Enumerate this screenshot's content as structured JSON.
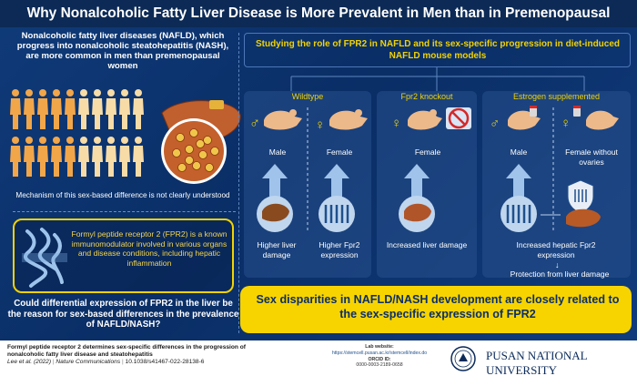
{
  "title": "Why Nonalcoholic Fatty Liver Disease is More Prevalent in Men than in Premenopausal Women",
  "left": {
    "intro": "Nonalcoholic fatty liver diseases (NAFLD), which progress into nonalcoholic steatohepatitis (NASH), are more common in men than premenopausal women",
    "mechanism": "Mechanism of this sex-based difference is not clearly understood",
    "fpr2": "Formyl peptide receptor 2 (FPR2) is a known immunomodulator involved in various organs and disease conditions, including hepatic inflammation",
    "question": "Could differential expression of FPR2 in the liver be the reason for sex-based differences in the prevalence of NAFLD/NASH?"
  },
  "study": "Studying the role of FPR2 in NAFLD and its sex-specific progression in diet-induced NAFLD mouse models",
  "panels": {
    "wildtype": {
      "title": "Wildtype",
      "male": "Male",
      "female": "Female",
      "male_result": "Higher liver damage",
      "female_result": "Higher Fpr2 expression"
    },
    "knockout": {
      "title": "Fpr2 knockout",
      "female": "Female",
      "result": "Increased liver damage"
    },
    "estrogen": {
      "title": "Estrogen supplemented",
      "male": "Male",
      "female": "Female without ovaries",
      "result": "Increased hepatic Fpr2 expression",
      "protection": "Protection from liver damage"
    }
  },
  "conclusion": "Sex disparities in NAFLD/NASH development are closely related to the sex-specific expression of FPR2",
  "footer": {
    "paper_title": "Formyl peptide receptor 2 determines sex-specific differences in the progression of nonalcoholic fatty liver disease and steatohepatitis",
    "authors": "Lee et al. (2022)",
    "journal": "Nature Communications",
    "doi": "10.1038/s41467-022-28138-6",
    "lab_label": "Lab website:",
    "lab_url": "https://stemcell.pusan.ac.kr/stemcell/index.do",
    "orcid_label": "ORCID ID:",
    "orcid": "0000-0003-2189-0658",
    "university": "PUSAN NATIONAL UNIVERSITY"
  },
  "colors": {
    "accent_yellow": "#f2d300",
    "navy": "#0b2a5a",
    "male_figure": "#f2a64a",
    "female_figure": "#f7dca8",
    "liver": "#b8532a"
  }
}
